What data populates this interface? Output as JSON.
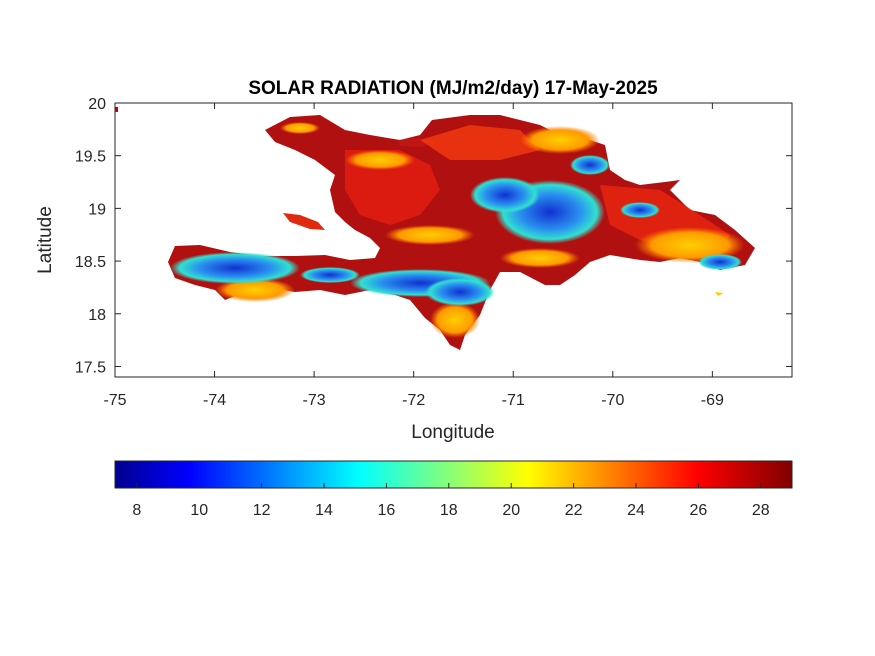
{
  "chart_data": {
    "type": "heatmap",
    "title": "SOLAR RADIATION (MJ/m2/day) 17-May-2025",
    "xlabel": "Longitude",
    "ylabel": "Latitude",
    "xlim": [
      -75,
      -68.2
    ],
    "ylim": [
      17.4,
      20
    ],
    "x_ticks": [
      "-75",
      "-74",
      "-73",
      "-72",
      "-71",
      "-70",
      "-69"
    ],
    "y_ticks": [
      "17.5",
      "18",
      "18.5",
      "19",
      "19.5",
      "20"
    ],
    "colorbar": {
      "colormap": "jet",
      "range": [
        7.3,
        29
      ],
      "ticks": [
        "8",
        "10",
        "12",
        "14",
        "16",
        "18",
        "20",
        "22",
        "24",
        "26",
        "28"
      ]
    },
    "colors": {
      "dark_red": "#8b0000",
      "red": "#e01010",
      "orange": "#ff7a00",
      "yellow": "#ffe600",
      "cyan": "#20e0e0",
      "blue": "#1040e0",
      "navy": "#00008f"
    }
  }
}
